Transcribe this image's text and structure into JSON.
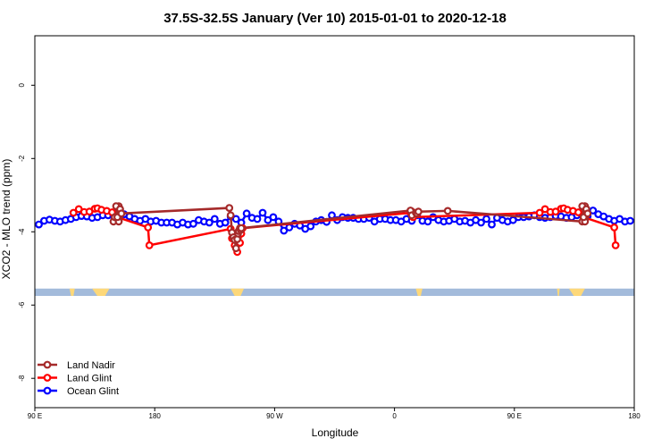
{
  "chart_data": {
    "type": "line",
    "title": "37.5S-32.5S January (Ver 10)   2015-01-01 to 2020-12-18",
    "xlabel": "Longitude",
    "ylabel": "XCO2 - MLO trend (ppm)",
    "xlim": [
      90,
      540
    ],
    "ylim": [
      -8.8,
      1.35
    ],
    "x_ticks": [
      {
        "value": 90,
        "label": "90 E"
      },
      {
        "value": 180,
        "label": "180"
      },
      {
        "value": 270,
        "label": "90 W"
      },
      {
        "value": 360,
        "label": "0"
      },
      {
        "value": 450,
        "label": "90 E"
      },
      {
        "value": 540,
        "label": "180"
      }
    ],
    "y_ticks": [
      {
        "value": 0,
        "label": "0"
      },
      {
        "value": -2,
        "label": "-2"
      },
      {
        "value": -4,
        "label": "-4"
      },
      {
        "value": -6,
        "label": "-6"
      },
      {
        "value": -8,
        "label": "-8"
      }
    ],
    "legend_position": "bottom-left",
    "map_strip": {
      "y_range": [
        -5.75,
        -5.55
      ],
      "ocean_color": "#a3bbdb",
      "land_color": "#fdd87a"
    },
    "series": [
      {
        "name": "Land Nadir",
        "color": "#a52a2a",
        "x": [
          149,
          150,
          153,
          154,
          153,
          153.5,
          153,
          152,
          151,
          154,
          155,
          236,
          237,
          238,
          239,
          240,
          241,
          242,
          242.5,
          243,
          244,
          244.5,
          245,
          372,
          373,
          376,
          377,
          378,
          400,
          501,
          502,
          503,
          504,
          503,
          503.5,
          503,
          502,
          501,
          504,
          505
        ],
        "y": [
          -3.72,
          -3.6,
          -3.3,
          -3.38,
          -3.7,
          -3.57,
          -3.72,
          -3.6,
          -3.3,
          -3.38,
          -3.5,
          -3.35,
          -3.55,
          -4.02,
          -4.15,
          -4.22,
          -4.45,
          -4.2,
          -4.05,
          -3.98,
          -3.9,
          -3.95,
          -3.9,
          -3.42,
          -3.55,
          -3.48,
          -3.5,
          -3.45,
          -3.43,
          -3.72,
          -3.6,
          -3.3,
          -3.38,
          -3.7,
          -3.57,
          -3.72,
          -3.6,
          -3.3,
          -3.38,
          -3.5
        ]
      },
      {
        "name": "Land Glint",
        "color": "#ff0000",
        "x": [
          119,
          123,
          127,
          131,
          135,
          137,
          140,
          144,
          148,
          152,
          175,
          176,
          237,
          238,
          240,
          242,
          244,
          245,
          246,
          372,
          373,
          374,
          469,
          473,
          477,
          481,
          485,
          487,
          490,
          494,
          498,
          502,
          525,
          526
        ],
        "y": [
          -3.48,
          -3.38,
          -3.46,
          -3.45,
          -3.37,
          -3.36,
          -3.4,
          -3.43,
          -3.47,
          -3.6,
          -3.88,
          -4.37,
          -3.92,
          -4.18,
          -4.37,
          -4.55,
          -4.3,
          -4.05,
          -3.9,
          -3.48,
          -3.45,
          -3.6,
          -3.48,
          -3.38,
          -3.46,
          -3.45,
          -3.37,
          -3.36,
          -3.4,
          -3.43,
          -3.47,
          -3.6,
          -3.88,
          -4.37
        ]
      },
      {
        "name": "Ocean Glint",
        "color": "#0000ff",
        "x": [
          93,
          97,
          101,
          105,
          109,
          113,
          117,
          121,
          125,
          129,
          133,
          137,
          141,
          145,
          149,
          153,
          157,
          161,
          165,
          169,
          173,
          177,
          181,
          185,
          189,
          193,
          197,
          201,
          205,
          209,
          213,
          217,
          221,
          225,
          229,
          233,
          237,
          241,
          245,
          249,
          253,
          257,
          261,
          265,
          269,
          273,
          277,
          281,
          285,
          289,
          293,
          297,
          301,
          305,
          309,
          313,
          317,
          321,
          325,
          329,
          333,
          337,
          341,
          345,
          349,
          353,
          357,
          361,
          365,
          369,
          373,
          377,
          381,
          385,
          389,
          393,
          397,
          401,
          405,
          409,
          413,
          417,
          421,
          425,
          429,
          433,
          437,
          441,
          445,
          449,
          453,
          457,
          461,
          465,
          469,
          473,
          477,
          481,
          485,
          489,
          493,
          497,
          501,
          505,
          509,
          513,
          517,
          521,
          525,
          529,
          533,
          537
        ],
        "y": [
          -3.8,
          -3.7,
          -3.67,
          -3.7,
          -3.72,
          -3.68,
          -3.65,
          -3.6,
          -3.57,
          -3.58,
          -3.62,
          -3.6,
          -3.55,
          -3.55,
          -3.57,
          -3.42,
          -3.52,
          -3.58,
          -3.65,
          -3.7,
          -3.65,
          -3.72,
          -3.7,
          -3.75,
          -3.75,
          -3.75,
          -3.8,
          -3.75,
          -3.8,
          -3.78,
          -3.68,
          -3.72,
          -3.75,
          -3.65,
          -3.78,
          -3.75,
          -3.58,
          -3.65,
          -3.75,
          -3.5,
          -3.62,
          -3.65,
          -3.48,
          -3.68,
          -3.6,
          -3.72,
          -3.97,
          -3.88,
          -3.78,
          -3.83,
          -3.92,
          -3.85,
          -3.72,
          -3.68,
          -3.73,
          -3.55,
          -3.68,
          -3.6,
          -3.62,
          -3.62,
          -3.65,
          -3.65,
          -3.62,
          -3.72,
          -3.65,
          -3.65,
          -3.68,
          -3.68,
          -3.72,
          -3.65,
          -3.7,
          -3.55,
          -3.7,
          -3.72,
          -3.6,
          -3.68,
          -3.72,
          -3.7,
          -3.65,
          -3.72,
          -3.7,
          -3.75,
          -3.68,
          -3.75,
          -3.65,
          -3.8,
          -3.62,
          -3.68,
          -3.72,
          -3.68,
          -3.6,
          -3.6,
          -3.58,
          -3.55,
          -3.6,
          -3.62,
          -3.6,
          -3.57,
          -3.58,
          -3.62,
          -3.6,
          -3.55,
          -3.55,
          -3.57,
          -3.42,
          -3.52,
          -3.58,
          -3.65,
          -3.7,
          -3.65,
          -3.72,
          -3.7
        ]
      }
    ]
  }
}
